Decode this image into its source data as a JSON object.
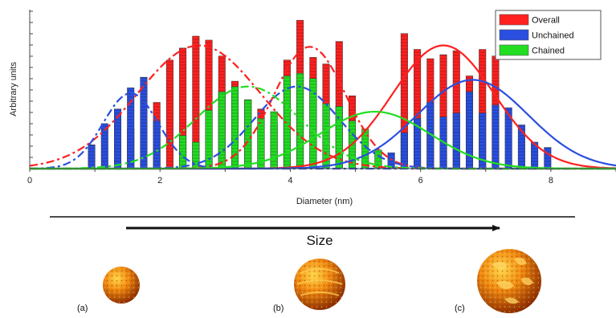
{
  "chart_data": {
    "type": "bar",
    "title": "",
    "xlabel": "Diameter (nm)",
    "ylabel": "Arbitrary units",
    "xlim": [
      0,
      9
    ],
    "ylim": [
      0,
      1
    ],
    "xticks": [
      "0",
      "2",
      "4",
      "6",
      "8"
    ],
    "grid": false,
    "legend_placement": "top-right",
    "series": [
      {
        "name": "Overall",
        "color": "#ff2020",
        "bar_x": [
          1.55,
          1.95,
          2.15,
          2.35,
          2.55,
          2.75,
          2.95,
          3.15,
          3.35,
          3.55,
          3.75,
          3.95,
          4.15,
          4.35,
          4.55,
          4.75,
          4.95,
          5.75,
          5.95,
          6.15,
          6.35,
          6.55,
          6.75,
          6.95,
          7.15
        ],
        "bar_values": [
          0.3,
          0.5,
          0.82,
          0.91,
          1.0,
          0.97,
          0.85,
          0.66,
          0.52,
          0.45,
          0.33,
          0.82,
          1.12,
          0.84,
          0.79,
          0.96,
          0.55,
          1.02,
          0.9,
          0.83,
          0.86,
          0.89,
          0.7,
          0.9,
          0.85
        ],
        "fit_lines": [
          {
            "dashed": true,
            "peak_x": 2.6,
            "peak_y": 0.93,
            "width": 0.95
          },
          {
            "dashed": true,
            "peak_x": 4.3,
            "peak_y": 0.92,
            "width": 0.55
          },
          {
            "dashed": false,
            "peak_x": 6.35,
            "peak_y": 0.93,
            "width": 0.78
          }
        ]
      },
      {
        "name": "Unchained",
        "color": "#2a4fe0",
        "bar_x": [
          0.95,
          1.15,
          1.35,
          1.55,
          1.75,
          1.95,
          5.15,
          5.35,
          5.55,
          5.75,
          5.95,
          6.15,
          6.35,
          6.55,
          6.75,
          6.95,
          7.15,
          7.35,
          7.55,
          7.75,
          7.95
        ],
        "bar_values": [
          0.18,
          0.34,
          0.45,
          0.61,
          0.69,
          0.36,
          0.06,
          0.14,
          0.12,
          0.27,
          0.38,
          0.5,
          0.39,
          0.42,
          0.58,
          0.42,
          0.48,
          0.46,
          0.33,
          0.2,
          0.16
        ],
        "fit_lines": [
          {
            "dashed": true,
            "peak_x": 1.55,
            "peak_y": 0.57,
            "width": 0.42
          },
          {
            "dashed": true,
            "peak_x": 4.1,
            "peak_y": 0.62,
            "width": 0.65
          },
          {
            "dashed": false,
            "peak_x": 6.8,
            "peak_y": 0.67,
            "width": 0.85
          }
        ]
      },
      {
        "name": "Chained",
        "color": "#22dd22",
        "bar_x": [
          2.35,
          2.55,
          2.75,
          2.95,
          3.15,
          3.35,
          3.55,
          3.75,
          3.95,
          4.15,
          4.35,
          4.55,
          4.75,
          4.95,
          5.15,
          5.35
        ],
        "bar_values": [
          0.25,
          0.2,
          0.44,
          0.58,
          0.62,
          0.52,
          0.38,
          0.43,
          0.7,
          0.72,
          0.68,
          0.49,
          0.47,
          0.36,
          0.3,
          0.14
        ],
        "fit_lines": [
          {
            "dashed": true,
            "peak_x": 3.35,
            "peak_y": 0.62,
            "width": 0.8
          },
          {
            "dashed": false,
            "peak_x": 5.3,
            "peak_y": 0.43,
            "width": 0.85
          }
        ]
      }
    ]
  },
  "size_label": "Size",
  "panels": [
    {
      "label": "(a)",
      "diameter": 2
    },
    {
      "label": "(b)",
      "diameter": 4
    },
    {
      "label": "(c)",
      "diameter": 6
    }
  ]
}
